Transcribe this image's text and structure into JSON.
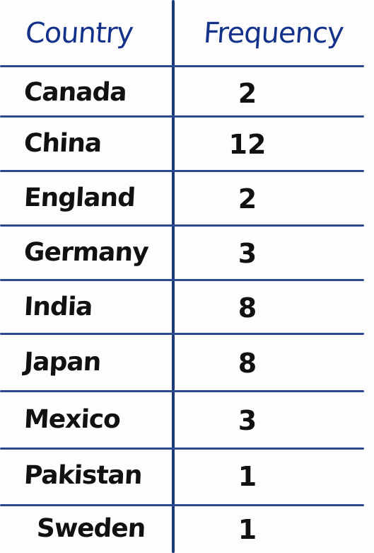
{
  "table": {
    "headers": {
      "country": "Country",
      "frequency": "Frequency"
    },
    "rows": [
      {
        "country": "Canada",
        "frequency": "2"
      },
      {
        "country": "China",
        "frequency": "12"
      },
      {
        "country": "England",
        "frequency": "2"
      },
      {
        "country": "Germany",
        "frequency": "3"
      },
      {
        "country": "India",
        "frequency": "8"
      },
      {
        "country": "Japan",
        "frequency": "8"
      },
      {
        "country": "Mexico",
        "frequency": "3"
      },
      {
        "country": "Pakistan",
        "frequency": "1"
      },
      {
        "country": "Sweden",
        "frequency": "1"
      }
    ]
  },
  "colors": {
    "header_ink": "#14328a",
    "body_ink": "#111111",
    "rule_lines": "#2b4a8f"
  }
}
